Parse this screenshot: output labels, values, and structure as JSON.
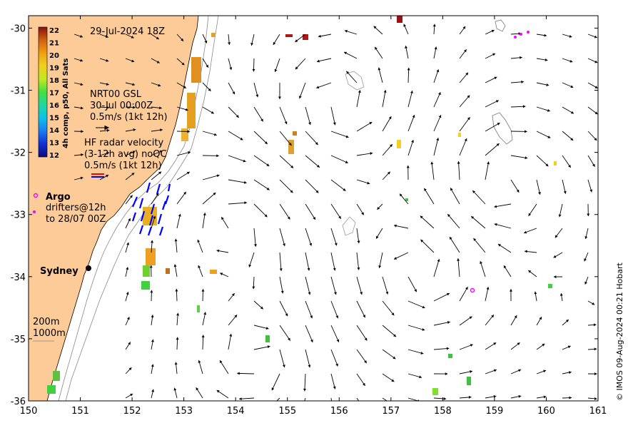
{
  "map": {
    "timestamp": "29-Jul-2024 18Z",
    "credit": "© IMOS 09-Aug-2024 00:21 Hobart",
    "place_label": "Sydney",
    "x_ticks": [
      "150",
      "151",
      "152",
      "153",
      "154",
      "155",
      "156",
      "157",
      "158",
      "159",
      "160",
      "161"
    ],
    "y_ticks": [
      "-30",
      "-31",
      "-32",
      "-33",
      "-34",
      "-35",
      "-36"
    ],
    "lon_range": [
      150,
      161
    ],
    "lat_range": [
      -36,
      -29.8
    ],
    "colors": {
      "land": "#fccb98",
      "drifter": "#ff00ff",
      "radar_vector": "#0000ff",
      "radar_ref_red": "#ff0000"
    }
  },
  "colorbar": {
    "title": "4h comp, p50, All Sats",
    "ticks": [
      "22",
      "21",
      "20",
      "19",
      "18",
      "17",
      "16",
      "15",
      "14",
      "13",
      "12"
    ]
  },
  "legend": {
    "gsl_line1": "NRT00 GSL",
    "gsl_line2": "30-Jul 00:00Z",
    "gsl_line3": "0.5m/s (1kt 12h)",
    "radar_line1": "HF radar velocity",
    "radar_line2": "(3-12h avg) noQC",
    "radar_line3": "0.5m/s (1kt 12h)",
    "argo_label": "Argo",
    "drifter_line1": "drifters@12h",
    "drifter_line2": "to 28/07 00Z",
    "isobath_200": "200m",
    "isobath_1000": "1000m"
  }
}
